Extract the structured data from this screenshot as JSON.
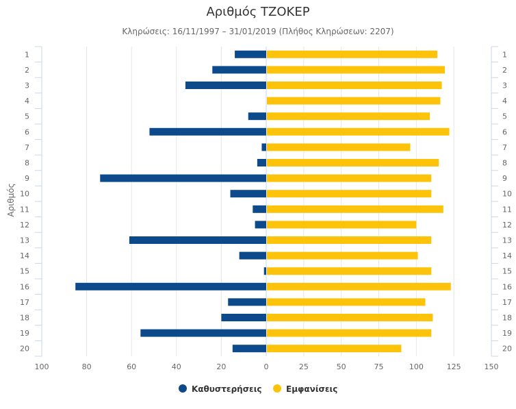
{
  "colors": {
    "delays": "#0d4a8b",
    "appearances": "#fdc30a",
    "grid": "#e6e6e6",
    "axis": "#ccd6eb",
    "text": "#666666",
    "title": "#333333"
  },
  "chart_data": {
    "type": "bar",
    "orientation": "horizontal",
    "title": "Αριθμός ΤΖΟΚΕΡ",
    "subtitle": "Κληρώσεις: 16/11/1997 – 31/01/2019 (Πλήθος Κληρώσεων: 2207)",
    "ylabel": "Αριθμός",
    "categories": [
      "1",
      "2",
      "3",
      "4",
      "5",
      "6",
      "7",
      "8",
      "9",
      "10",
      "11",
      "12",
      "13",
      "14",
      "15",
      "16",
      "17",
      "18",
      "19",
      "20"
    ],
    "series": [
      {
        "name": "Καθυστερήσεις",
        "color": "#0d4a8b",
        "values": [
          14,
          24,
          36,
          0,
          8,
          52,
          2,
          4,
          74,
          16,
          6,
          5,
          61,
          12,
          1,
          85,
          17,
          20,
          56,
          15
        ]
      },
      {
        "name": "Εμφανίσεις",
        "color": "#fdc30a",
        "values": [
          114,
          119,
          117,
          116,
          109,
          122,
          96,
          115,
          110,
          110,
          118,
          100,
          110,
          101,
          110,
          123,
          106,
          111,
          110,
          90
        ]
      }
    ],
    "left_axis": {
      "max": 100,
      "ticks": [
        100,
        80,
        60,
        40,
        20,
        0
      ]
    },
    "right_axis": {
      "max": 150,
      "ticks": [
        25,
        50,
        75,
        100,
        125,
        150
      ]
    },
    "legend_position": "bottom-center"
  }
}
